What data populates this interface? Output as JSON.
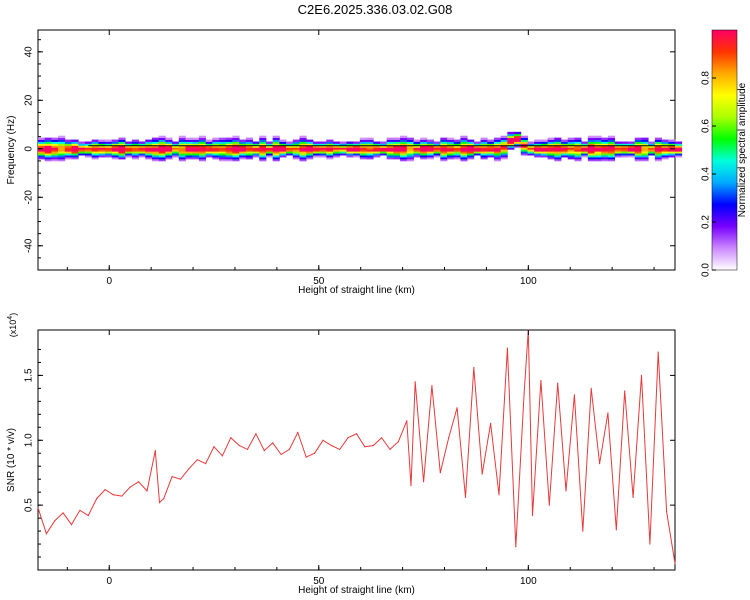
{
  "title": "C2E6.2025.336.03.02.G08",
  "chart_data": [
    {
      "type": "heatmap",
      "title": "",
      "xlabel": "Height of straight line (km)",
      "ylabel": "Frequency (Hz)",
      "xlim": [
        -17,
        135
      ],
      "ylim": [
        -50,
        49
      ],
      "x_ticks": [
        "0",
        "50",
        "100"
      ],
      "x_tick_values": [
        0,
        50,
        100
      ],
      "y_ticks": [
        "40",
        "20",
        "0",
        "-20",
        "-40"
      ],
      "y_tick_values": [
        40,
        20,
        0,
        -20,
        -40
      ],
      "reference_line_frequency": 0,
      "band_center_frequency": 0,
      "band_half_width": 4,
      "bump": {
        "x": 96,
        "frequency": 5
      },
      "colorbar": {
        "label": "Normalized spectral amplitude",
        "range": [
          0.0,
          1.0
        ],
        "ticks": [
          "0.0",
          "0.2",
          "0.4",
          "0.6",
          "0.8"
        ],
        "tick_values": [
          0.0,
          0.2,
          0.4,
          0.6,
          0.8
        ],
        "colormap": [
          "#ffffff",
          "#cc88ff",
          "#7700ff",
          "#0000ff",
          "#00aaff",
          "#00ffdd",
          "#00ff00",
          "#aaff00",
          "#ffff00",
          "#ffaa00",
          "#ff3300",
          "#ff0066"
        ]
      },
      "grid": false
    },
    {
      "type": "line",
      "title": "",
      "xlabel": "Height of straight line (km)",
      "ylabel": "SNR (10 * v/v)",
      "y_multiplier": "(x10",
      "y_multiplier_exp": "4",
      "xlim": [
        -17,
        135
      ],
      "ylim": [
        0.0,
        1.85
      ],
      "x_ticks": [
        "0",
        "50",
        "100"
      ],
      "x_tick_values": [
        0,
        50,
        100
      ],
      "y_ticks": [
        "0.5",
        "1.0",
        "1.5"
      ],
      "y_tick_values": [
        0.5,
        1.0,
        1.5
      ],
      "line_color": "#e83a3a",
      "grid": false,
      "series": [
        {
          "x": [
            -17,
            -15,
            -13,
            -11,
            -9,
            -7,
            -5,
            -3,
            -1,
            1,
            3,
            5,
            7,
            9,
            11,
            12,
            13,
            15,
            17,
            19,
            21,
            23,
            25,
            27,
            29,
            31,
            33,
            35,
            37,
            39,
            41,
            43,
            45,
            47,
            49,
            51,
            53,
            55,
            57,
            59,
            61,
            63,
            65,
            67,
            69,
            71,
            72,
            73,
            75,
            77,
            79,
            81,
            83,
            85,
            87,
            89,
            91,
            93,
            95,
            97,
            99,
            100,
            101,
            103,
            105,
            107,
            109,
            111,
            113,
            115,
            117,
            119,
            121,
            123,
            125,
            127,
            129,
            131,
            133,
            135
          ],
          "y": [
            0.48,
            0.28,
            0.38,
            0.44,
            0.35,
            0.46,
            0.42,
            0.55,
            0.62,
            0.58,
            0.57,
            0.64,
            0.68,
            0.61,
            0.92,
            0.52,
            0.55,
            0.72,
            0.7,
            0.78,
            0.85,
            0.82,
            0.95,
            0.88,
            1.02,
            0.96,
            0.93,
            1.05,
            0.92,
            0.98,
            0.89,
            0.93,
            1.06,
            0.87,
            0.9,
            1.0,
            0.96,
            0.93,
            1.02,
            1.05,
            0.95,
            0.96,
            1.02,
            0.93,
            0.99,
            1.15,
            0.65,
            1.45,
            0.68,
            1.42,
            0.75,
            1.02,
            1.25,
            0.56,
            1.56,
            0.74,
            1.13,
            0.58,
            1.71,
            0.18,
            1.36,
            1.86,
            0.42,
            1.46,
            0.5,
            1.44,
            0.61,
            1.35,
            0.3,
            1.4,
            0.82,
            1.21,
            0.31,
            1.38,
            0.56,
            1.5,
            0.2,
            1.68,
            0.45,
            0.05
          ]
        }
      ]
    }
  ]
}
